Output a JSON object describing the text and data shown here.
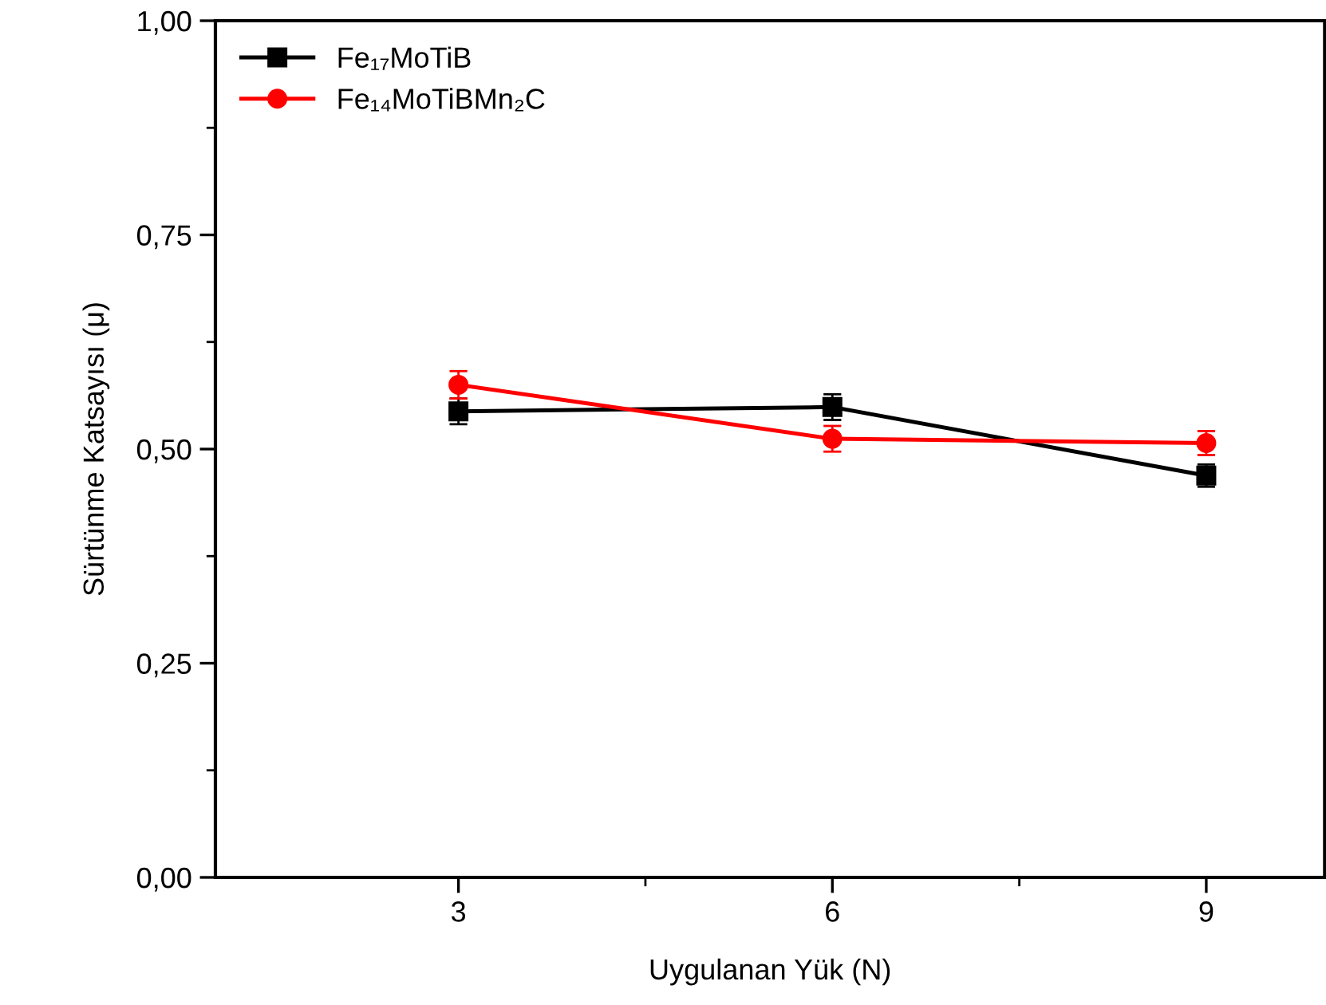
{
  "chart_data": {
    "type": "line",
    "xlabel": "Uygulanan Yük (N)",
    "ylabel": "Sürtünme Katsayısı (μ)",
    "x": [
      3,
      6,
      9
    ],
    "series": [
      {
        "name": "Fe₁₇MoTiB",
        "color": "#000000",
        "marker": "square",
        "values": [
          0.544,
          0.549,
          0.469
        ],
        "errors": [
          0.015,
          0.015,
          0.013
        ]
      },
      {
        "name": "Fe₁₄MoTiBMn₂C",
        "color": "#ff0000",
        "marker": "circle",
        "values": [
          0.575,
          0.512,
          0.507
        ],
        "errors": [
          0.016,
          0.015,
          0.014
        ]
      }
    ],
    "xlim": [
      1.05,
      9.95
    ],
    "ylim": [
      0,
      1
    ],
    "xticks": [
      3,
      6,
      9
    ],
    "yticks": [
      {
        "value": 0,
        "label": "0,00"
      },
      {
        "value": 0.25,
        "label": "0,25"
      },
      {
        "value": 0.5,
        "label": "0,50"
      },
      {
        "value": 0.75,
        "label": "0,75"
      },
      {
        "value": 1,
        "label": "1,00"
      }
    ],
    "legend": "top left",
    "line_style": "solid",
    "grid": false
  }
}
